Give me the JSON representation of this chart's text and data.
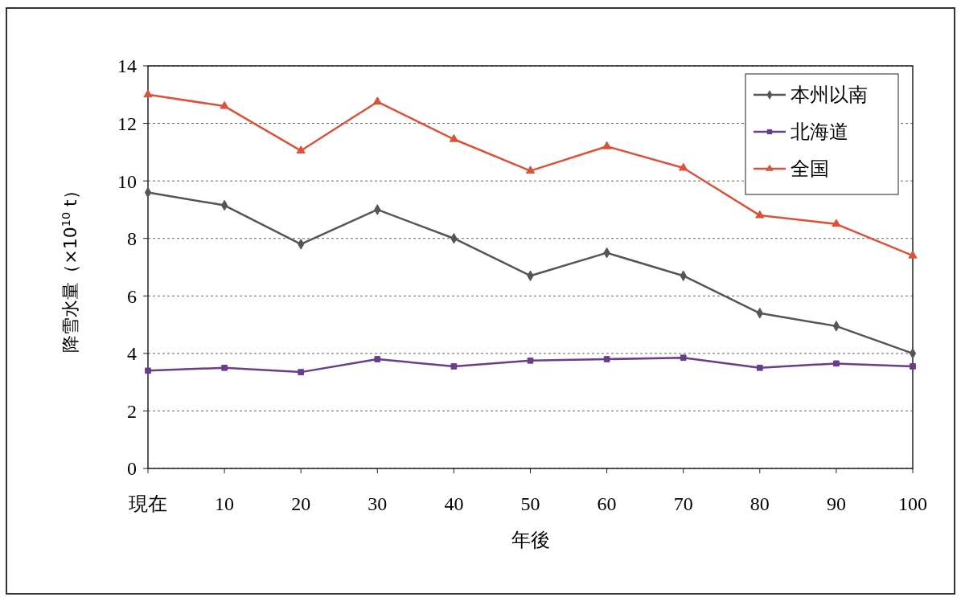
{
  "chart_data": {
    "type": "line",
    "xlabel": "年後",
    "ylabel": "降雪水量（×10$^{10}$ t）",
    "categories": [
      "現在",
      "10",
      "20",
      "30",
      "40",
      "50",
      "60",
      "70",
      "80",
      "90",
      "100"
    ],
    "series": [
      {
        "name": "本州以南",
        "color": "#555555",
        "marker": "diamond",
        "values": [
          9.6,
          9.15,
          7.8,
          9.0,
          8.0,
          6.7,
          7.5,
          6.7,
          5.4,
          4.95,
          4.0
        ]
      },
      {
        "name": "北海道",
        "color": "#6a3d8a",
        "marker": "square",
        "values": [
          3.4,
          3.5,
          3.35,
          3.8,
          3.55,
          3.75,
          3.8,
          3.85,
          3.5,
          3.65,
          3.55
        ]
      },
      {
        "name": "全国",
        "color": "#d9533a",
        "marker": "triangle",
        "values": [
          13.0,
          12.6,
          11.05,
          12.75,
          11.45,
          10.35,
          11.2,
          10.45,
          8.8,
          8.5,
          7.4
        ]
      }
    ],
    "ylim": [
      0,
      14
    ],
    "yticks": [
      0,
      2,
      4,
      6,
      8,
      10,
      12,
      14
    ],
    "grid": "y",
    "legend": "top right",
    "line_style": "solid"
  }
}
